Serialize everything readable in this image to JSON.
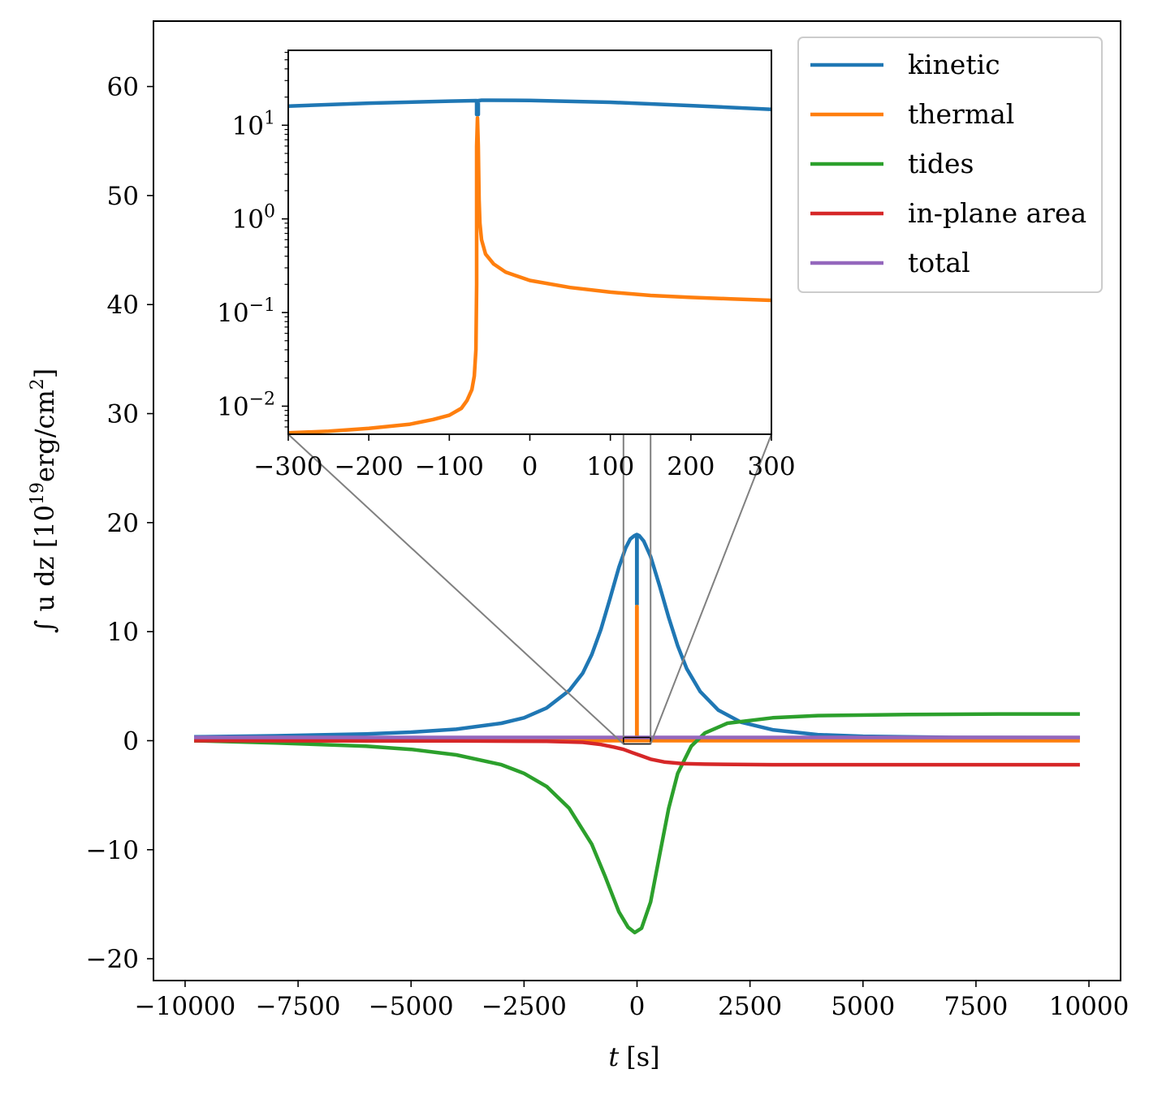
{
  "chart_data": [
    {
      "id": "main",
      "type": "line",
      "xlabel": {
        "var": "t",
        "unit": "[s]"
      },
      "ylabel": {
        "prefix": "∫ u dz [10",
        "exp": "19",
        "unit": "erg/cm",
        "unit_exp": "2",
        "suffix": "]"
      },
      "xlim": [
        -10700,
        10700
      ],
      "ylim": [
        -22,
        66
      ],
      "xticks": [
        -10000,
        -7500,
        -5000,
        -2500,
        0,
        2500,
        5000,
        7500,
        10000
      ],
      "xtick_labels": [
        "−10000",
        "−7500",
        "−5000",
        "−2500",
        "0",
        "2500",
        "5000",
        "7500",
        "10000"
      ],
      "yticks": [
        -20,
        -10,
        0,
        10,
        20,
        30,
        40,
        50,
        60
      ],
      "ytick_labels": [
        "−20",
        "−10",
        "0",
        "10",
        "20",
        "30",
        "40",
        "50",
        "60"
      ],
      "series": [
        {
          "name": "kinetic",
          "color": "#1f77b4",
          "points": [
            [
              -9800,
              0.35
            ],
            [
              -8000,
              0.45
            ],
            [
              -6000,
              0.62
            ],
            [
              -5000,
              0.78
            ],
            [
              -4000,
              1.05
            ],
            [
              -3000,
              1.6
            ],
            [
              -2500,
              2.1
            ],
            [
              -2000,
              3.0
            ],
            [
              -1500,
              4.6
            ],
            [
              -1200,
              6.2
            ],
            [
              -1000,
              7.9
            ],
            [
              -800,
              10.2
            ],
            [
              -600,
              13.0
            ],
            [
              -400,
              15.9
            ],
            [
              -250,
              17.7
            ],
            [
              -150,
              18.5
            ],
            [
              -60,
              18.8
            ],
            [
              -5,
              18.9
            ],
            [
              -5,
              12.5
            ],
            [
              0,
              12.5
            ],
            [
              0,
              18.9
            ],
            [
              50,
              18.8
            ],
            [
              150,
              18.3
            ],
            [
              300,
              16.9
            ],
            [
              500,
              14.2
            ],
            [
              700,
              11.3
            ],
            [
              900,
              8.7
            ],
            [
              1100,
              6.6
            ],
            [
              1400,
              4.5
            ],
            [
              1800,
              2.8
            ],
            [
              2300,
              1.7
            ],
            [
              3000,
              1.0
            ],
            [
              4000,
              0.55
            ],
            [
              5000,
              0.4
            ],
            [
              7000,
              0.3
            ],
            [
              9800,
              0.28
            ]
          ]
        },
        {
          "name": "thermal",
          "color": "#ff7f0e",
          "points": [
            [
              -9800,
              0.0
            ],
            [
              -100,
              0.0
            ],
            [
              -5,
              0.0
            ],
            [
              -5,
              12.3
            ],
            [
              0,
              12.3
            ],
            [
              0,
              0.0
            ],
            [
              9800,
              0.0
            ]
          ]
        },
        {
          "name": "tides",
          "color": "#2ca02c",
          "points": [
            [
              -9800,
              0.0
            ],
            [
              -8000,
              -0.2
            ],
            [
              -6000,
              -0.5
            ],
            [
              -5000,
              -0.8
            ],
            [
              -4000,
              -1.3
            ],
            [
              -3000,
              -2.2
            ],
            [
              -2500,
              -3.0
            ],
            [
              -2000,
              -4.2
            ],
            [
              -1500,
              -6.2
            ],
            [
              -1000,
              -9.5
            ],
            [
              -700,
              -12.5
            ],
            [
              -400,
              -15.7
            ],
            [
              -200,
              -17.1
            ],
            [
              -50,
              -17.6
            ],
            [
              100,
              -17.2
            ],
            [
              300,
              -14.8
            ],
            [
              500,
              -10.5
            ],
            [
              700,
              -6.2
            ],
            [
              900,
              -3.0
            ],
            [
              1200,
              -0.5
            ],
            [
              1500,
              0.7
            ],
            [
              2000,
              1.6
            ],
            [
              3000,
              2.1
            ],
            [
              4000,
              2.3
            ],
            [
              6000,
              2.4
            ],
            [
              8000,
              2.45
            ],
            [
              9800,
              2.45
            ]
          ]
        },
        {
          "name": "in-plane area",
          "color": "#d62728",
          "points": [
            [
              -9800,
              0.0
            ],
            [
              -4000,
              -0.02
            ],
            [
              -2000,
              -0.05
            ],
            [
              -1200,
              -0.15
            ],
            [
              -800,
              -0.35
            ],
            [
              -500,
              -0.6
            ],
            [
              -300,
              -0.8
            ],
            [
              -100,
              -1.1
            ],
            [
              100,
              -1.4
            ],
            [
              300,
              -1.7
            ],
            [
              600,
              -1.95
            ],
            [
              1000,
              -2.1
            ],
            [
              1500,
              -2.15
            ],
            [
              3000,
              -2.2
            ],
            [
              6000,
              -2.2
            ],
            [
              9800,
              -2.2
            ]
          ]
        },
        {
          "name": "total",
          "color": "#9467bd",
          "points": [
            [
              -9800,
              0.3
            ],
            [
              0,
              0.3
            ],
            [
              9800,
              0.3
            ]
          ]
        }
      ],
      "legend": {
        "position": "top-right",
        "entries": [
          "kinetic",
          "thermal",
          "tides",
          "in-plane area",
          "total"
        ]
      },
      "zoom_region": {
        "xlim": [
          -300,
          300
        ],
        "ylim": [
          -0.3,
          0.3
        ]
      }
    },
    {
      "id": "inset",
      "type": "line",
      "yscale": "log",
      "xlim": [
        -300,
        300
      ],
      "ylim_log10": [
        -2.3,
        1.8
      ],
      "xticks": [
        -300,
        -200,
        -100,
        0,
        100,
        200,
        300
      ],
      "xtick_labels": [
        "−300",
        "−200",
        "−100",
        "0",
        "100",
        "200",
        "300"
      ],
      "yticks_log10": [
        -2,
        -1,
        0,
        1
      ],
      "ytick_labels": [
        {
          "base": "10",
          "exp": "−2"
        },
        {
          "base": "10",
          "exp": "−1"
        },
        {
          "base": "10",
          "exp": "0"
        },
        {
          "base": "10",
          "exp": "1"
        }
      ],
      "series": [
        {
          "name": "kinetic",
          "color": "#1f77b4",
          "points": [
            [
              -300,
              16.0
            ],
            [
              -200,
              17.2
            ],
            [
              -100,
              18.1
            ],
            [
              -68,
              18.3
            ],
            [
              -66,
              18.3
            ],
            [
              -66,
              13.0
            ],
            [
              -64,
              13.0
            ],
            [
              -64,
              18.3
            ],
            [
              -60,
              18.5
            ],
            [
              -50,
              18.5
            ],
            [
              0,
              18.4
            ],
            [
              100,
              17.6
            ],
            [
              200,
              16.2
            ],
            [
              300,
              14.8
            ]
          ]
        },
        {
          "name": "thermal",
          "color": "#ff7f0e",
          "points": [
            [
              -300,
              0.0052
            ],
            [
              -250,
              0.0054
            ],
            [
              -200,
              0.0058
            ],
            [
              -150,
              0.0064
            ],
            [
              -120,
              0.0072
            ],
            [
              -100,
              0.008
            ],
            [
              -85,
              0.0095
            ],
            [
              -78,
              0.0115
            ],
            [
              -72,
              0.015
            ],
            [
              -69,
              0.021
            ],
            [
              -67,
              0.04
            ],
            [
              -66,
              0.2
            ],
            [
              -66,
              6.0
            ],
            [
              -65,
              12.0
            ],
            [
              -64,
              6.0
            ],
            [
              -63,
              1.6
            ],
            [
              -62,
              0.9
            ],
            [
              -60,
              0.6
            ],
            [
              -55,
              0.42
            ],
            [
              -45,
              0.33
            ],
            [
              -30,
              0.27
            ],
            [
              0,
              0.22
            ],
            [
              50,
              0.185
            ],
            [
              100,
              0.165
            ],
            [
              150,
              0.152
            ],
            [
              200,
              0.145
            ],
            [
              250,
              0.14
            ],
            [
              300,
              0.135
            ]
          ]
        }
      ]
    }
  ]
}
